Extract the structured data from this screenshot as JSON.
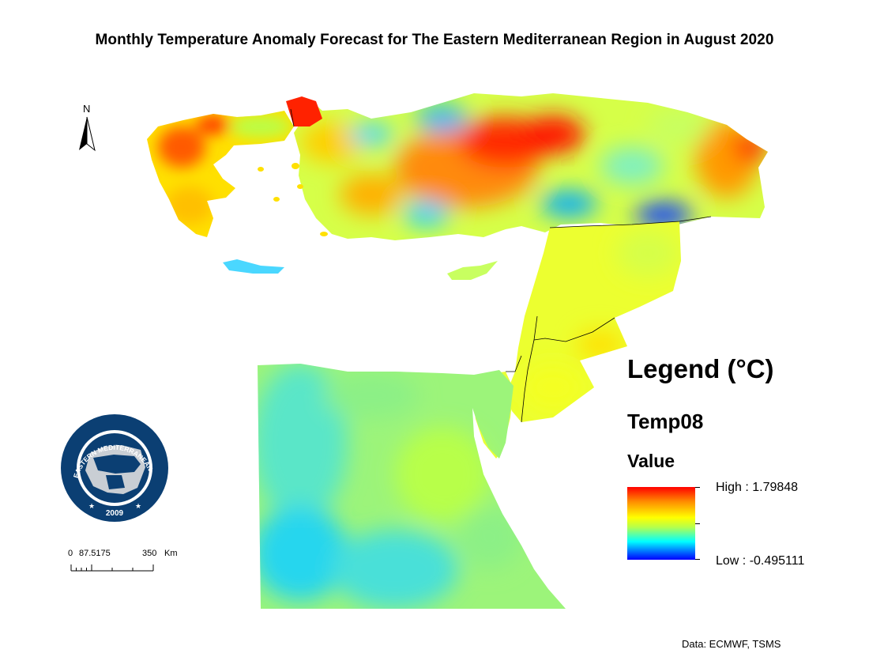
{
  "title": "Monthly Temperature Anomaly Forecast for The Eastern Mediterranean Region in August 2020",
  "north_arrow": {
    "label": "N"
  },
  "logo": {
    "text_top": "EASTERN MEDITERRANEAN",
    "text_right": "CLIMATE CENTRE",
    "year": "2009",
    "colors": {
      "ring": "#0b3f73",
      "land": "#c9ced4"
    }
  },
  "scale_bar": {
    "labels": [
      "0",
      "87.5175",
      "350",
      "Km"
    ]
  },
  "legend": {
    "title": "Legend (°C)",
    "layer": "Temp08",
    "subtitle": "Value",
    "high_label": "High : 1.79848",
    "low_label": "Low : -0.495111",
    "high_value": 1.79848,
    "low_value": -0.495111,
    "colors": [
      "#ff0000",
      "#ff8c00",
      "#ffff00",
      "#b8ff4a",
      "#00ffff",
      "#0064ff",
      "#0000ff"
    ]
  },
  "source": "Data: ECMWF, TSMS"
}
